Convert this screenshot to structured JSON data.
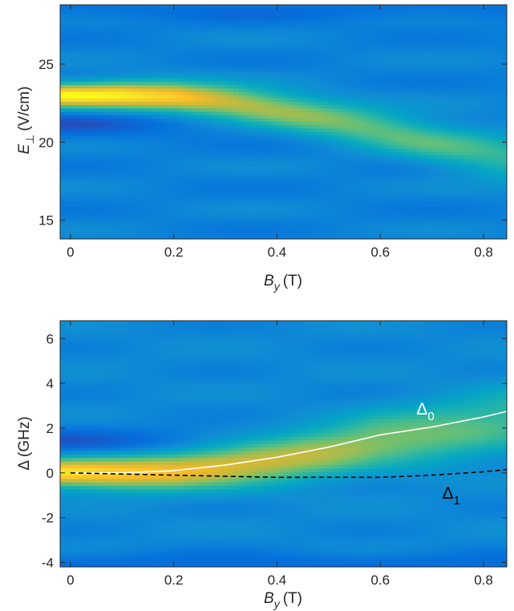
{
  "chart_data": [
    {
      "type": "heatmap",
      "title": "",
      "xlabel": {
        "symbol": "B",
        "sub": "y",
        "unit": "(T)"
      },
      "ylabel": {
        "symbol": "E",
        "sub": "⊥",
        "unit": "(V/cm)"
      },
      "xlim": [
        -0.02,
        0.845
      ],
      "ylim": [
        13.8,
        28.8
      ],
      "xticks": [
        0,
        0.2,
        0.4,
        0.6,
        0.8
      ],
      "xtick_labels": [
        "0",
        "0.2",
        "0.4",
        "0.6",
        "0.8"
      ],
      "yticks": [
        15,
        20,
        25
      ],
      "ytick_labels": [
        "15",
        "20",
        "25"
      ],
      "colormap": "parula",
      "grid": false,
      "ridge_peak_x": [
        0.0,
        0.1,
        0.2,
        0.3,
        0.4,
        0.5,
        0.6,
        0.7,
        0.8,
        0.845
      ],
      "ridge_peak_y": [
        23.0,
        23.0,
        22.9,
        22.6,
        22.1,
        21.5,
        20.8,
        20.0,
        19.3,
        19.0
      ],
      "ridge_intensity": [
        1.0,
        0.97,
        0.9,
        0.8,
        0.72,
        0.66,
        0.62,
        0.58,
        0.55,
        0.54
      ],
      "dip_peak_y": 21.2
    },
    {
      "type": "heatmap",
      "title": "",
      "xlabel": {
        "symbol": "B",
        "sub": "y",
        "unit": "(T)"
      },
      "ylabel": {
        "symbol": "Δ",
        "sub": "",
        "unit": "(GHz)"
      },
      "xlim": [
        -0.02,
        0.845
      ],
      "ylim": [
        -4.2,
        6.8
      ],
      "xticks": [
        0,
        0.2,
        0.4,
        0.6,
        0.8
      ],
      "xtick_labels": [
        "0",
        "0.2",
        "0.4",
        "0.6",
        "0.8"
      ],
      "yticks": [
        -4,
        -2,
        0,
        2,
        4,
        6
      ],
      "ytick_labels": [
        "-4",
        "-2",
        "0",
        "2",
        "4",
        "6"
      ],
      "colormap": "parula",
      "grid": false,
      "series": [
        {
          "name": "Δ0",
          "line": "solid",
          "color": "#ffffff",
          "x": [
            0.0,
            0.1,
            0.2,
            0.3,
            0.4,
            0.5,
            0.6,
            0.7,
            0.8,
            0.845
          ],
          "y": [
            0.0,
            0.0,
            0.1,
            0.35,
            0.7,
            1.15,
            1.7,
            2.05,
            2.5,
            2.75
          ]
        },
        {
          "name": "Δ1",
          "line": "dashed",
          "color": "#000000",
          "x": [
            0.0,
            0.1,
            0.2,
            0.3,
            0.4,
            0.5,
            0.6,
            0.7,
            0.8,
            0.845
          ],
          "y": [
            0.0,
            -0.05,
            -0.1,
            -0.15,
            -0.2,
            -0.2,
            -0.2,
            -0.1,
            0.05,
            0.15
          ]
        }
      ],
      "annotations": [
        {
          "symbol": "Δ",
          "sub": "0",
          "x": 0.67,
          "y": 2.6,
          "color": "#ffffff"
        },
        {
          "symbol": "Δ",
          "sub": "1",
          "x": 0.72,
          "y": -1.15,
          "color": "#000000"
        }
      ]
    }
  ]
}
